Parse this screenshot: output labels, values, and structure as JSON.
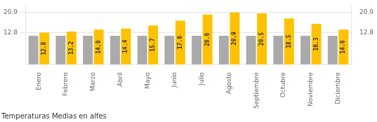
{
  "chart_data": {
    "type": "bar",
    "title": "Temperaturas Medias en alfes",
    "categories": [
      "Enero",
      "Febrero",
      "Marzo",
      "Abril",
      "Mayo",
      "Junio",
      "Julio",
      "Agosto",
      "Septiembre",
      "Octubre",
      "Noviembre",
      "Diciembre"
    ],
    "series": [
      {
        "color": "#AAAAAA",
        "values": [
          11.5,
          11.5,
          11.5,
          11.5,
          11.5,
          11.5,
          11.5,
          11.5,
          11.5,
          11.5,
          11.5,
          11.5
        ]
      },
      {
        "color": "#FFC200",
        "values": [
          12.8,
          13.2,
          14.0,
          14.4,
          15.7,
          17.6,
          20.0,
          20.9,
          20.5,
          18.5,
          16.3,
          14.0
        ],
        "value_labels": [
          "12.8",
          "13.2",
          "14.0",
          "14.4",
          "15.7",
          "17.6",
          "20.0",
          "20.9",
          "20.5",
          "18.5",
          "16.3",
          "14.0"
        ],
        "data_labels": true
      }
    ],
    "ylim": [
      0,
      23.5
    ],
    "yticks": [
      12.8,
      20.9
    ],
    "y2lim": [
      0,
      23.5
    ],
    "y2ticks": [
      12.8,
      20.9
    ],
    "grid": true
  }
}
